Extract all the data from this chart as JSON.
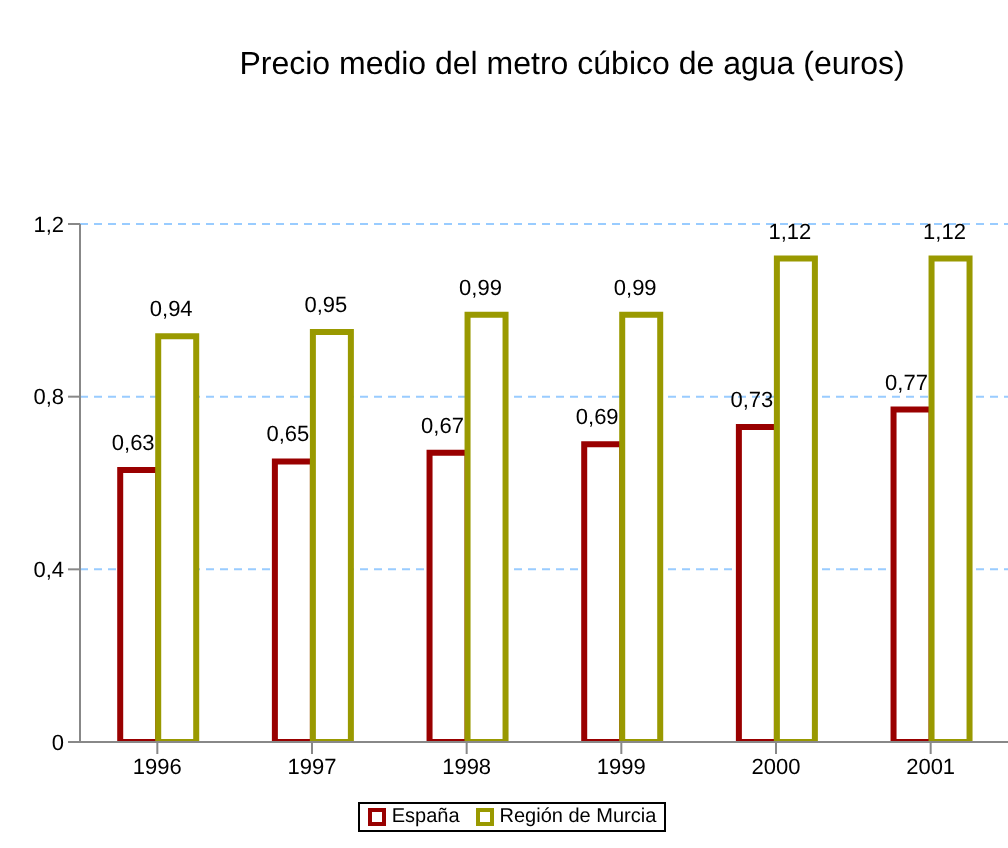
{
  "chart_data": {
    "type": "bar",
    "title": "Precio medio del metro cúbico de agua (euros)",
    "categories": [
      "1996",
      "1997",
      "1998",
      "1999",
      "2000",
      "2001"
    ],
    "series": [
      {
        "name": "España",
        "color": "#990000",
        "values": [
          0.63,
          0.65,
          0.67,
          0.69,
          0.73,
          0.77
        ],
        "value_labels": [
          "0,63",
          "0,65",
          "0,67",
          "0,69",
          "0,73",
          "0,77"
        ]
      },
      {
        "name": "Región de Murcia",
        "color": "#999900",
        "values": [
          0.94,
          0.95,
          0.99,
          0.99,
          1.12,
          1.12
        ],
        "value_labels": [
          "0,94",
          "0,95",
          "0,99",
          "0,99",
          "1,12",
          "1,12"
        ]
      }
    ],
    "ylim": [
      0,
      1.2
    ],
    "yticks": [
      {
        "value": 0,
        "label": "0"
      },
      {
        "value": 0.4,
        "label": "0,4"
      },
      {
        "value": 0.8,
        "label": "0,8"
      },
      {
        "value": 1.2,
        "label": "1,2"
      }
    ],
    "grid": "y",
    "legend": "bottom"
  }
}
